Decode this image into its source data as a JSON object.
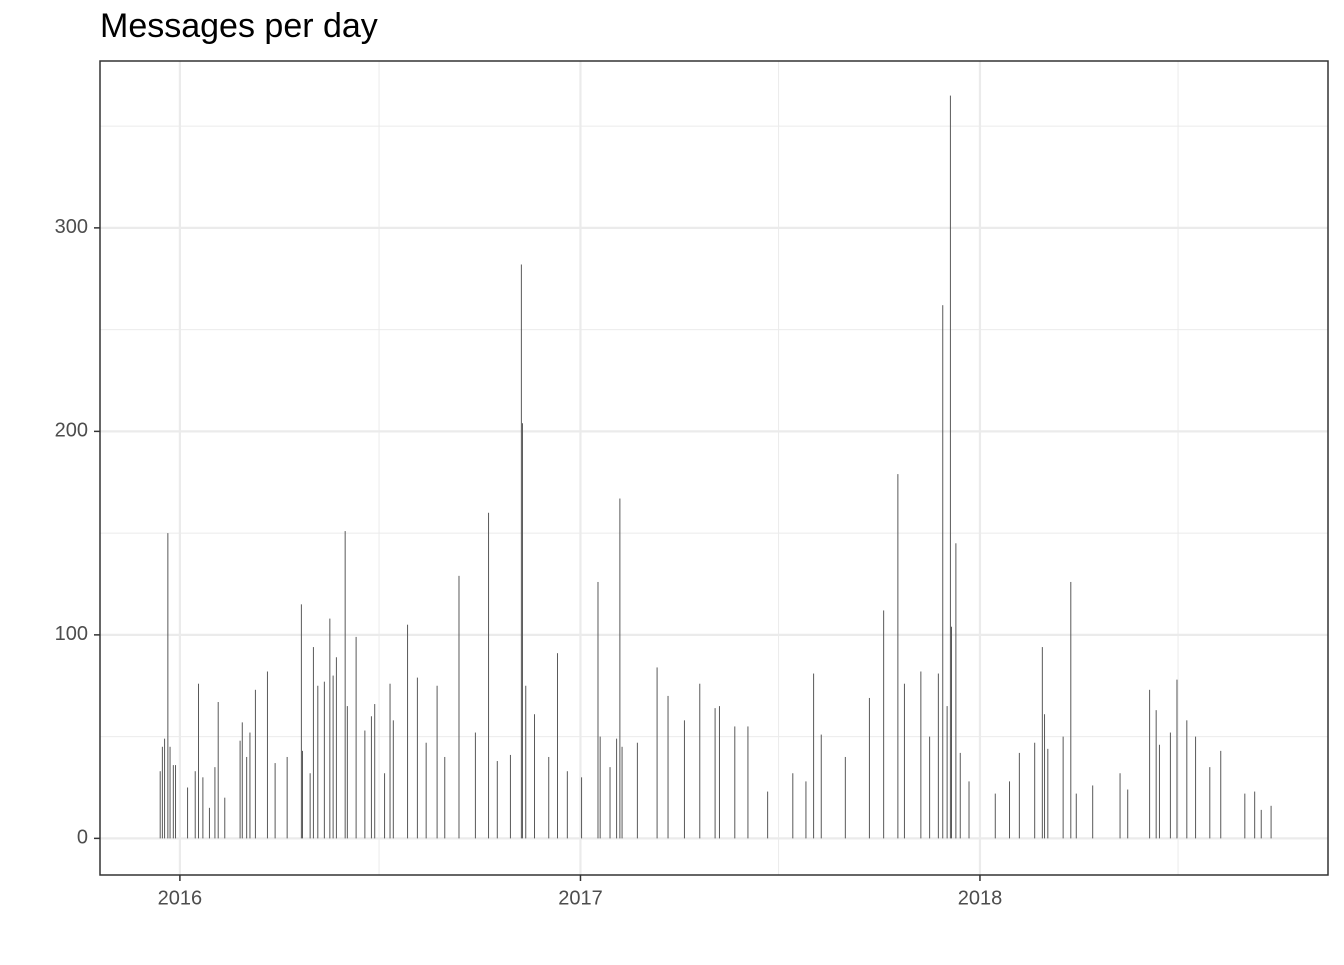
{
  "chart_data": {
    "type": "bar",
    "title": "Messages per day",
    "color": "#595959",
    "x": [
      "2015-12-14",
      "2015-12-16",
      "2015-12-18",
      "2015-12-21",
      "2015-12-23",
      "2015-12-26",
      "2015-12-28",
      "2016-01-08",
      "2016-01-15",
      "2016-01-18",
      "2016-01-22",
      "2016-01-28",
      "2016-02-02",
      "2016-02-05",
      "2016-02-11",
      "2016-02-25",
      "2016-02-27",
      "2016-03-02",
      "2016-03-05",
      "2016-03-10",
      "2016-03-21",
      "2016-03-28",
      "2016-04-08",
      "2016-04-21",
      "2016-04-22",
      "2016-04-29",
      "2016-05-02",
      "2016-05-06",
      "2016-05-12",
      "2016-05-17",
      "2016-05-20",
      "2016-05-23",
      "2016-05-31",
      "2016-06-02",
      "2016-06-10",
      "2016-06-18",
      "2016-06-24",
      "2016-06-27",
      "2016-07-06",
      "2016-07-11",
      "2016-07-14",
      "2016-07-27",
      "2016-08-05",
      "2016-08-13",
      "2016-08-23",
      "2016-08-30",
      "2016-09-12",
      "2016-09-27",
      "2016-10-09",
      "2016-10-17",
      "2016-10-29",
      "2016-11-08",
      "2016-11-09",
      "2016-11-12",
      "2016-11-20",
      "2016-12-03",
      "2016-12-11",
      "2016-12-20",
      "2017-01-02",
      "2017-01-17",
      "2017-01-19",
      "2017-01-28",
      "2017-02-03",
      "2017-02-06",
      "2017-02-08",
      "2017-02-22",
      "2017-03-12",
      "2017-03-22",
      "2017-04-06",
      "2017-04-20",
      "2017-05-04",
      "2017-05-08",
      "2017-05-22",
      "2017-06-03",
      "2017-06-21",
      "2017-07-14",
      "2017-07-26",
      "2017-08-02",
      "2017-08-09",
      "2017-08-31",
      "2017-09-22",
      "2017-10-05",
      "2017-10-18",
      "2017-10-24",
      "2017-11-08",
      "2017-11-16",
      "2017-11-24",
      "2017-11-28",
      "2017-12-02",
      "2017-12-05",
      "2017-12-06",
      "2017-12-10",
      "2017-12-14",
      "2017-12-22",
      "2018-01-15",
      "2018-01-28",
      "2018-02-06",
      "2018-02-20",
      "2018-02-27",
      "2018-03-01",
      "2018-03-04",
      "2018-03-18",
      "2018-03-25",
      "2018-03-30",
      "2018-04-14",
      "2018-05-09",
      "2018-05-16",
      "2018-06-05",
      "2018-06-11",
      "2018-06-14",
      "2018-06-24",
      "2018-06-30",
      "2018-07-09",
      "2018-07-17",
      "2018-07-30",
      "2018-08-09",
      "2018-08-31",
      "2018-09-09",
      "2018-09-15",
      "2018-09-24"
    ],
    "values": [
      33,
      45,
      49,
      150,
      45,
      36,
      36,
      25,
      33,
      76,
      30,
      15,
      35,
      67,
      20,
      48,
      57,
      40,
      52,
      73,
      82,
      37,
      40,
      115,
      43,
      32,
      94,
      75,
      77,
      108,
      80,
      89,
      151,
      65,
      99,
      53,
      60,
      66,
      32,
      76,
      58,
      105,
      79,
      47,
      75,
      40,
      129,
      52,
      160,
      38,
      41,
      282,
      204,
      75,
      61,
      40,
      91,
      33,
      30,
      126,
      50,
      35,
      49,
      167,
      45,
      47,
      84,
      70,
      58,
      76,
      64,
      65,
      55,
      55,
      23,
      32,
      28,
      81,
      51,
      40,
      69,
      112,
      179,
      76,
      82,
      50,
      81,
      262,
      65,
      365,
      104,
      145,
      42,
      28,
      22,
      28,
      42,
      47,
      94,
      61,
      44,
      50,
      126,
      22,
      26,
      32,
      24,
      73,
      63,
      46,
      52,
      78,
      58,
      50,
      35,
      43,
      22,
      23,
      14,
      16
    ],
    "xlim": [
      "2015-10-20",
      "2018-11-15"
    ],
    "xticks": [
      {
        "value": "2016-01-01",
        "label": "2016"
      },
      {
        "value": "2017-01-01",
        "label": "2017"
      },
      {
        "value": "2018-01-01",
        "label": "2018"
      }
    ],
    "xminor": [
      "2016-07-01",
      "2017-07-01",
      "2018-07-01"
    ],
    "ylim": [
      -18,
      382
    ],
    "yticks": [
      0,
      100,
      200,
      300
    ],
    "yminor": [
      50,
      150,
      250,
      350
    ],
    "grid": true
  }
}
